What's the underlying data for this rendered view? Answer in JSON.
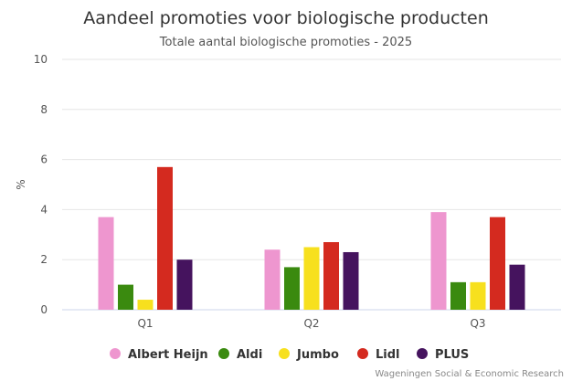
{
  "chart_data": {
    "type": "bar",
    "title": "Aandeel promoties voor biologische producten",
    "subtitle": "Totale aantal biologische promoties - 2025",
    "xlabel": "",
    "ylabel": "%",
    "ylim": [
      0,
      10
    ],
    "yticks": [
      0,
      2,
      4,
      6,
      8,
      10
    ],
    "grid": true,
    "legend": "bottom",
    "categories": [
      "Q1",
      "Q2",
      "Q3"
    ],
    "series": [
      {
        "name": "Albert Heijn",
        "color": "#ee96cf",
        "values": [
          3.7,
          2.4,
          3.9
        ]
      },
      {
        "name": "Aldi",
        "color": "#3a8a0f",
        "values": [
          1.0,
          1.7,
          1.1
        ]
      },
      {
        "name": "Jumbo",
        "color": "#f7e01e",
        "values": [
          0.4,
          2.5,
          1.1
        ]
      },
      {
        "name": "Lidl",
        "color": "#d42a1f",
        "values": [
          5.7,
          2.7,
          3.7
        ]
      },
      {
        "name": "PLUS",
        "color": "#45135e",
        "values": [
          2.0,
          2.3,
          1.8
        ]
      }
    ],
    "credits": "Wageningen Social & Economic Research"
  }
}
